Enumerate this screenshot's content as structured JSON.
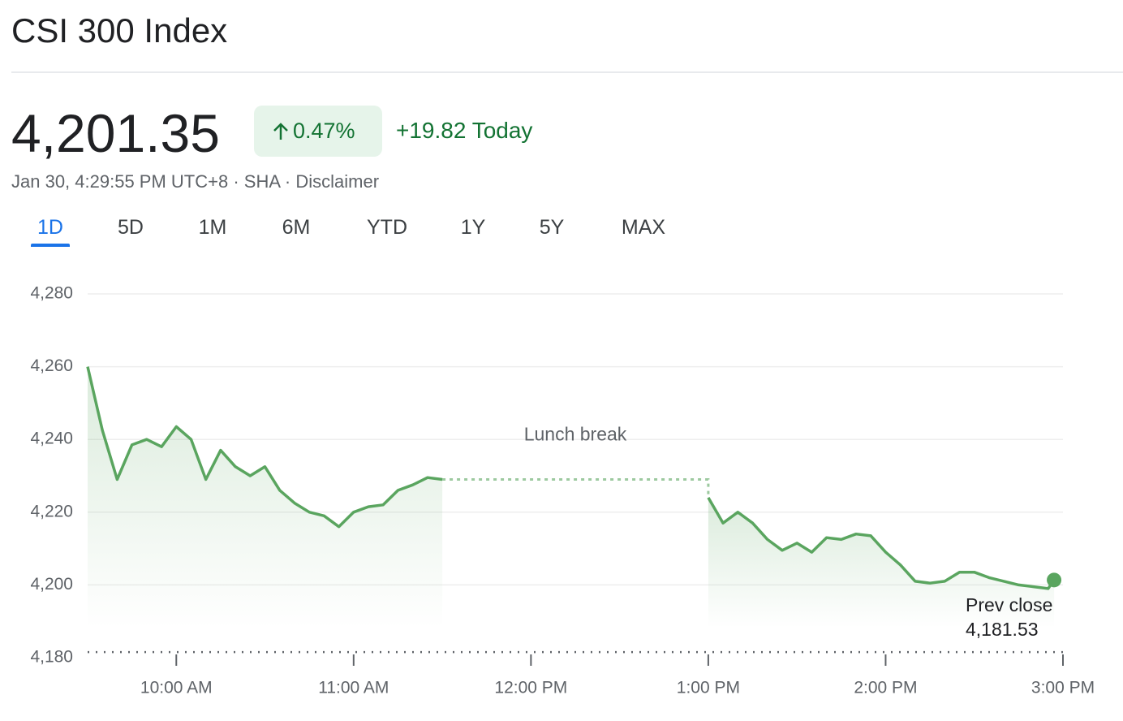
{
  "header": {
    "title": "CSI 300 Index",
    "price": "4,201.35",
    "change_percent": "0.47%",
    "change_today": "+19.82 Today",
    "timestamp": "Jan 30, 4:29:55 PM UTC+8",
    "exchange": "SHA",
    "disclaimer": "Disclaimer"
  },
  "tabs": [
    "1D",
    "5D",
    "1M",
    "6M",
    "YTD",
    "1Y",
    "5Y",
    "MAX"
  ],
  "chart_data": {
    "type": "line",
    "color": "#5aa55f",
    "grid": true,
    "x": [
      570,
      575,
      580,
      585,
      590,
      595,
      600,
      605,
      610,
      615,
      620,
      625,
      630,
      635,
      640,
      645,
      650,
      655,
      660,
      665,
      670,
      675,
      680,
      685,
      690,
      735,
      780,
      785,
      790,
      795,
      800,
      805,
      810,
      815,
      820,
      825,
      830,
      835,
      840,
      845,
      850,
      855,
      860,
      865,
      870,
      875,
      880,
      885,
      890,
      895,
      897
    ],
    "values": [
      4260,
      4242.5,
      4229,
      4238.5,
      4240,
      4238,
      4243.5,
      4240,
      4229,
      4237,
      4232.5,
      4230,
      4232.5,
      4226,
      4222.5,
      4220,
      4219,
      4216,
      4220,
      4221.5,
      4222,
      4226,
      4227.5,
      4229.5,
      4229,
      null,
      4224,
      4217,
      4220,
      4217,
      4212.5,
      4209.5,
      4211.5,
      4209,
      4213,
      4212.5,
      4214,
      4213.5,
      4209,
      4205.5,
      4201,
      4200.5,
      4201,
      4203.5,
      4203.5,
      4202,
      4201,
      4200,
      4199.5,
      4199,
      4201.35
    ],
    "xlim": [
      570,
      900
    ],
    "ylim": [
      4180,
      4280
    ],
    "xticks": [
      {
        "value": 600,
        "label": "10:00 AM"
      },
      {
        "value": 660,
        "label": "11:00 AM"
      },
      {
        "value": 720,
        "label": "12:00 PM"
      },
      {
        "value": 780,
        "label": "1:00 PM"
      },
      {
        "value": 840,
        "label": "2:00 PM"
      },
      {
        "value": 900,
        "label": "3:00 PM"
      }
    ],
    "yticks": [
      {
        "value": 4180,
        "label": "4,180"
      },
      {
        "value": 4200,
        "label": "4,200"
      },
      {
        "value": 4220,
        "label": "4,220"
      },
      {
        "value": 4240,
        "label": "4,240"
      },
      {
        "value": 4260,
        "label": "4,260"
      },
      {
        "value": 4280,
        "label": "4,280"
      }
    ],
    "annotation": "Lunch break",
    "reference_line": {
      "name": "Prev close",
      "value": 4181.53,
      "value_label": "4,181.53"
    }
  }
}
